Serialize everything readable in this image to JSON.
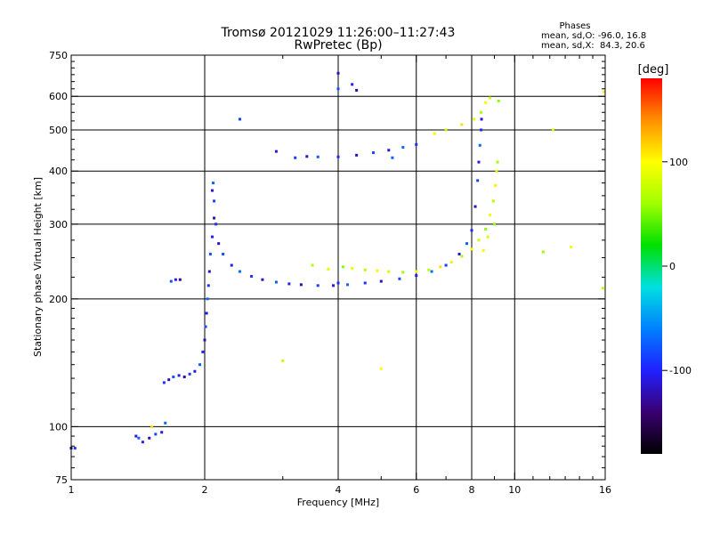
{
  "chart_data": {
    "type": "scatter",
    "title": "Tromsø 20121029 11:26:00–11:27:43",
    "subtitle": "RwPretec (Bp)",
    "stats": {
      "heading": "Phases",
      "line1": "mean, sd,O: -96.0, 16.8",
      "line2": "mean, sd,X:  84.3, 20.6"
    },
    "xlabel": "Frequency [MHz]",
    "ylabel": "Stationary phase Virtual Height [km]",
    "xscale": "log",
    "yscale": "log",
    "xlim": [
      1,
      16
    ],
    "ylim": [
      75,
      750
    ],
    "xticks": [
      1,
      2,
      4,
      6,
      8,
      10,
      16
    ],
    "yticks": [
      75,
      100,
      200,
      300,
      400,
      500,
      600,
      750
    ],
    "grid": true,
    "colorbar": {
      "label": "[deg]",
      "range": [
        -180,
        180
      ],
      "ticks": [
        100,
        0,
        -100
      ],
      "colormap": [
        "#000000",
        "#3a0070",
        "#2020ff",
        "#0080ff",
        "#00e0e0",
        "#00e000",
        "#a0ff00",
        "#ffff00",
        "#ff9000",
        "#ff0000"
      ]
    },
    "series": [
      {
        "mode": "O",
        "phase_mean": -96.0,
        "points": [
          [
            1.0,
            89
          ],
          [
            1.02,
            89
          ],
          [
            1.4,
            95
          ],
          [
            1.42,
            94
          ],
          [
            1.45,
            92
          ],
          [
            1.5,
            94
          ],
          [
            1.55,
            96
          ],
          [
            1.6,
            97
          ],
          [
            1.63,
            102
          ],
          [
            1.62,
            127
          ],
          [
            1.66,
            129
          ],
          [
            1.7,
            131
          ],
          [
            1.75,
            132
          ],
          [
            1.8,
            131
          ],
          [
            1.85,
            133
          ],
          [
            1.9,
            135
          ],
          [
            1.95,
            140
          ],
          [
            1.98,
            150
          ],
          [
            2.0,
            160
          ],
          [
            2.01,
            172
          ],
          [
            2.02,
            185
          ],
          [
            2.03,
            200
          ],
          [
            2.04,
            215
          ],
          [
            2.05,
            232
          ],
          [
            2.06,
            255
          ],
          [
            2.08,
            280
          ],
          [
            2.1,
            310
          ],
          [
            2.1,
            340
          ],
          [
            2.08,
            360
          ],
          [
            2.09,
            375
          ],
          [
            2.12,
            300
          ],
          [
            2.15,
            270
          ],
          [
            2.2,
            255
          ],
          [
            2.3,
            240
          ],
          [
            2.4,
            232
          ],
          [
            2.55,
            226
          ],
          [
            2.7,
            222
          ],
          [
            2.9,
            219
          ],
          [
            3.1,
            217
          ],
          [
            3.3,
            216
          ],
          [
            3.6,
            215
          ],
          [
            3.9,
            215
          ],
          [
            4.2,
            216
          ],
          [
            4.6,
            218
          ],
          [
            5.0,
            220
          ],
          [
            5.5,
            223
          ],
          [
            6.0,
            227
          ],
          [
            6.5,
            232
          ],
          [
            7.0,
            240
          ],
          [
            7.5,
            255
          ],
          [
            7.8,
            270
          ],
          [
            8.0,
            290
          ],
          [
            8.15,
            330
          ],
          [
            8.25,
            380
          ],
          [
            8.3,
            420
          ],
          [
            8.35,
            460
          ],
          [
            8.4,
            500
          ],
          [
            8.42,
            530
          ],
          [
            1.68,
            220
          ],
          [
            1.72,
            222
          ],
          [
            1.76,
            222
          ],
          [
            3.2,
            430
          ],
          [
            3.4,
            433
          ],
          [
            3.6,
            432
          ],
          [
            4.0,
            432
          ],
          [
            4.4,
            436
          ],
          [
            4.8,
            442
          ],
          [
            5.2,
            448
          ],
          [
            5.6,
            455
          ],
          [
            6.0,
            462
          ],
          [
            4.0,
            680
          ],
          [
            4.0,
            625
          ],
          [
            4.3,
            640
          ],
          [
            4.4,
            620
          ],
          [
            2.4,
            530
          ],
          [
            2.9,
            445
          ],
          [
            5.3,
            430
          ],
          [
            4.0,
            218
          ]
        ]
      },
      {
        "mode": "X",
        "phase_mean": 84.3,
        "points": [
          [
            4.1,
            238
          ],
          [
            4.3,
            236
          ],
          [
            4.6,
            234
          ],
          [
            4.9,
            233
          ],
          [
            5.2,
            232
          ],
          [
            5.6,
            231
          ],
          [
            6.0,
            232
          ],
          [
            6.4,
            234
          ],
          [
            6.8,
            238
          ],
          [
            7.2,
            244
          ],
          [
            7.6,
            252
          ],
          [
            8.0,
            262
          ],
          [
            8.3,
            275
          ],
          [
            8.6,
            292
          ],
          [
            8.8,
            315
          ],
          [
            8.95,
            340
          ],
          [
            9.05,
            370
          ],
          [
            9.1,
            400
          ],
          [
            9.15,
            420
          ],
          [
            6.6,
            490
          ],
          [
            7.0,
            500
          ],
          [
            7.6,
            515
          ],
          [
            8.1,
            530
          ],
          [
            8.4,
            550
          ],
          [
            8.6,
            580
          ],
          [
            8.8,
            595
          ],
          [
            9.2,
            585
          ],
          [
            13.4,
            265
          ],
          [
            15.8,
            212
          ],
          [
            15.9,
            615
          ],
          [
            12.2,
            500
          ],
          [
            11.6,
            258
          ],
          [
            5.0,
            137
          ],
          [
            3.0,
            143
          ],
          [
            1.52,
            100
          ],
          [
            3.8,
            235
          ],
          [
            3.5,
            240
          ],
          [
            8.5,
            260
          ],
          [
            8.7,
            280
          ],
          [
            9.0,
            300
          ]
        ]
      }
    ]
  }
}
